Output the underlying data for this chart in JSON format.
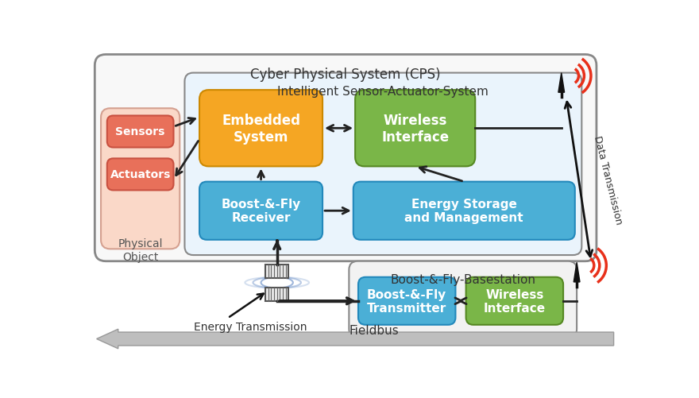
{
  "fig_width": 8.8,
  "fig_height": 5.02,
  "dpi": 100,
  "bg_color": "#ffffff",
  "colors": {
    "orange": "#F5A623",
    "green": "#7AB648",
    "blue": "#4BAFD6",
    "salmon": "#E8705A",
    "peach_bg": "#FAD8C8",
    "cps_border": "#888888",
    "isa_border": "#888888",
    "bfb_border": "#888888",
    "red_wifi": "#E8301A"
  },
  "texts": {
    "cps_label": "Cyber Physical System (CPS)",
    "isa_label": "Intelligent Sensor-Actuator-System",
    "embedded": "Embedded\nSystem",
    "wireless_top": "Wireless\nInterface",
    "boost_receiver": "Boost-&-Fly\nReceiver",
    "energy_storage": "Energy Storage\nand Management",
    "sensors": "Sensors",
    "actuators": "Actuators",
    "physical_object": "Physical\nObject",
    "bfb_label": "Boost-&-Fly-Basestation",
    "boost_transmitter": "Boost-&-Fly\nTransmitter",
    "wireless_bottom": "Wireless\nInterface",
    "energy_transmission": "Energy Transmission",
    "fieldbus": "Fieldbus",
    "data_transmission": "Data Transmission"
  }
}
